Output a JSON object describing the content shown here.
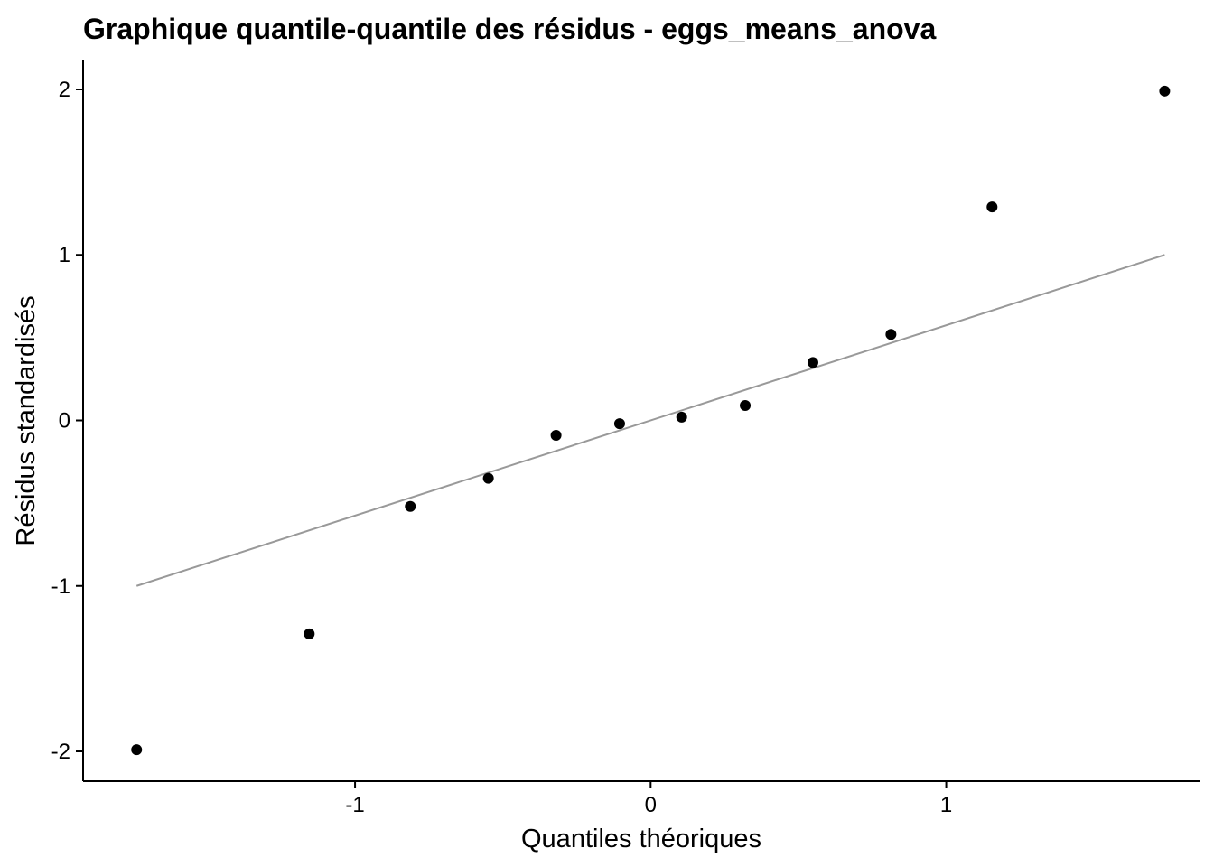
{
  "chart_data": {
    "type": "scatter",
    "title": "Graphique quantile-quantile des résidus - eggs_means_anova",
    "xlabel": "Quantiles théoriques",
    "ylabel": "Résidus standardisés",
    "xlim": [
      -1.92,
      1.86
    ],
    "ylim": [
      -2.18,
      2.18
    ],
    "x_ticks": [
      -1,
      0,
      1
    ],
    "x_tick_labels": [
      "-1",
      "0",
      "1"
    ],
    "y_ticks": [
      -2,
      -1,
      0,
      1,
      2
    ],
    "y_tick_labels": [
      "-2",
      "-1",
      "0",
      "1",
      "2"
    ],
    "grid": false,
    "points": [
      {
        "x": -1.739,
        "y": -1.99
      },
      {
        "x": -1.155,
        "y": -1.29
      },
      {
        "x": -0.813,
        "y": -0.52
      },
      {
        "x": -0.549,
        "y": -0.35
      },
      {
        "x": -0.32,
        "y": -0.09
      },
      {
        "x": -0.105,
        "y": -0.02
      },
      {
        "x": 0.105,
        "y": 0.02
      },
      {
        "x": 0.32,
        "y": 0.09
      },
      {
        "x": 0.549,
        "y": 0.35
      },
      {
        "x": 0.813,
        "y": 0.52
      },
      {
        "x": 1.155,
        "y": 1.29
      },
      {
        "x": 1.739,
        "y": 1.99
      }
    ],
    "reference_line": {
      "x": [
        -1.739,
        1.739
      ],
      "y": [
        -1.0,
        1.0
      ]
    },
    "colors": {
      "points": "#000000",
      "line": "#999999",
      "axis": "#000000"
    }
  }
}
